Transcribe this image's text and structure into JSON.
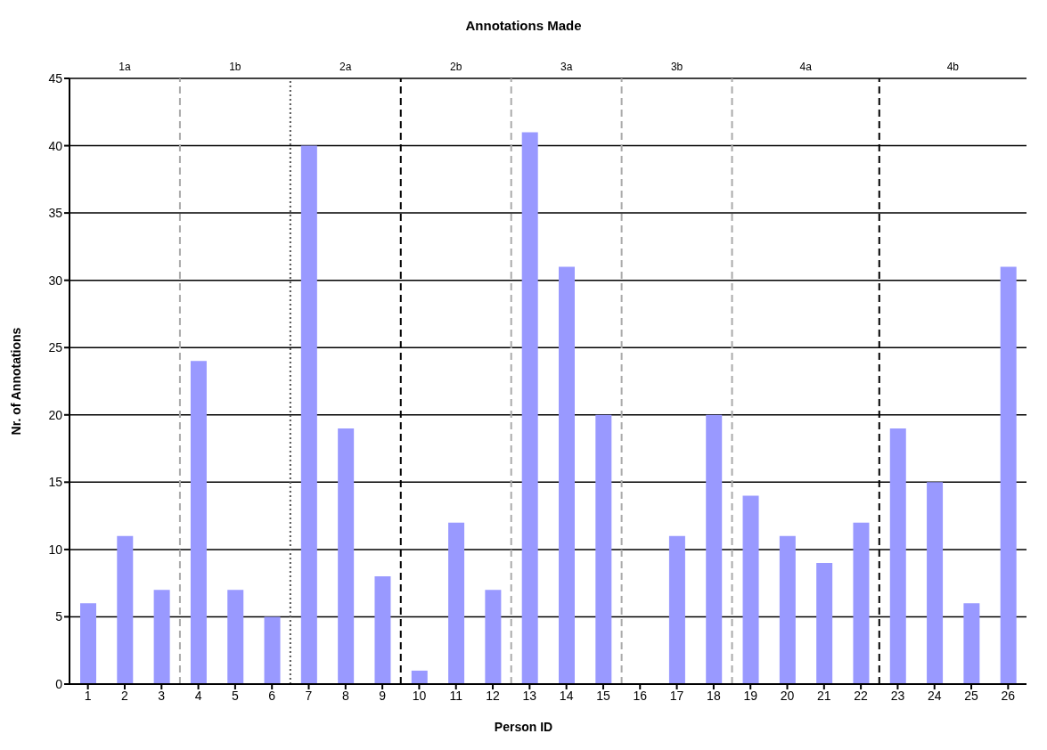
{
  "chart_data": {
    "type": "bar",
    "title": "Annotations Made",
    "xlabel": "Person ID",
    "ylabel": "Nr. of Annotations",
    "x": [
      1,
      2,
      3,
      4,
      5,
      6,
      7,
      8,
      9,
      10,
      11,
      12,
      13,
      14,
      15,
      16,
      17,
      18,
      19,
      20,
      21,
      22,
      23,
      24,
      25,
      26
    ],
    "values": [
      6,
      11,
      7,
      24,
      7,
      5,
      40,
      19,
      8,
      1,
      12,
      7,
      41,
      31,
      20,
      0,
      11,
      20,
      14,
      11,
      9,
      12,
      19,
      15,
      6,
      31
    ],
    "color": "#9999ff",
    "xlim": [
      0.5,
      26.5
    ],
    "xticks": [
      1,
      2,
      3,
      4,
      5,
      6,
      7,
      8,
      9,
      10,
      11,
      12,
      13,
      14,
      15,
      16,
      17,
      18,
      19,
      20,
      21,
      22,
      23,
      24,
      25,
      26
    ],
    "ylim": [
      0,
      45
    ],
    "yticks": [
      0,
      5,
      10,
      15,
      20,
      25,
      30,
      35,
      40,
      45
    ],
    "grid": "y",
    "ref_lines": [
      {
        "axis": "x",
        "value": 3.5,
        "color": "#aaaaaa",
        "line_style": "dashed"
      },
      {
        "axis": "x",
        "value": 6.5,
        "color": "#555555",
        "line_style": "dotted"
      },
      {
        "axis": "x",
        "value": 9.5,
        "color": "#000000",
        "line_style": "dashed"
      },
      {
        "axis": "x",
        "value": 12.5,
        "color": "#aaaaaa",
        "line_style": "dashed"
      },
      {
        "axis": "x",
        "value": 15.5,
        "color": "#aaaaaa",
        "line_style": "dashed"
      },
      {
        "axis": "x",
        "value": 18.5,
        "color": "#aaaaaa",
        "line_style": "dashed"
      },
      {
        "axis": "x",
        "value": 22.5,
        "color": "#000000",
        "line_style": "dashed"
      }
    ],
    "annotations": [
      "1a",
      "1b",
      "2a",
      "2b",
      "3a",
      "3b",
      "4a",
      "4b"
    ]
  }
}
